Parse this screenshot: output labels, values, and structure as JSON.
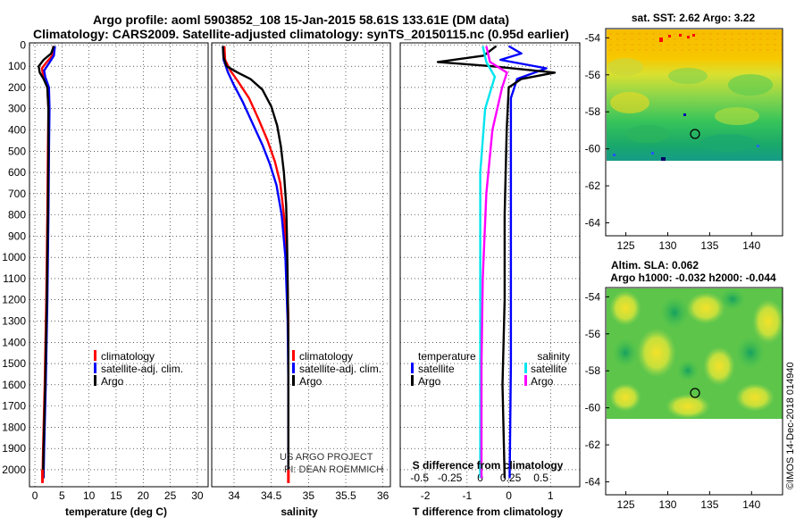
{
  "header": {
    "title_line1": "Argo profile: aoml 5903852_108 15-Jan-2015 58.61S 133.61E (DM data)",
    "title_line2": "Climatology: CARS2009. Satellite-adjusted climatology: synTS_20150115.nc (0.95d earlier)"
  },
  "colors": {
    "climatology": "#ff0000",
    "satellite": "#0000ff",
    "argo": "#000000",
    "sal_satellite": "#00e5ee",
    "sal_argo": "#ff00ff"
  },
  "credits": {
    "project": "US ARGO PROJECT",
    "pi": "PI: DEAN ROEMMICH",
    "imos": "©IMOS 14-Dec-2018 014940"
  },
  "chart_data": [
    {
      "type": "line",
      "title": "temperature profile",
      "xlabel": "temperature (deg C)",
      "ylabel": "pressure",
      "xlim": [
        -1,
        32
      ],
      "ylim": [
        2080,
        -10
      ],
      "xticks": [
        0,
        5,
        10,
        15,
        20,
        25,
        30
      ],
      "yticks": [
        0,
        100,
        200,
        300,
        400,
        500,
        600,
        700,
        800,
        900,
        1000,
        1100,
        1200,
        1300,
        1400,
        1500,
        1600,
        1700,
        1800,
        1900,
        2000
      ],
      "legend": [
        "climatology",
        "satellite-adj. clim.",
        "Argo"
      ],
      "series": [
        {
          "name": "climatology",
          "points": [
            [
              3.4,
              5
            ],
            [
              3.2,
              50
            ],
            [
              2.2,
              80
            ],
            [
              1.3,
              110
            ],
            [
              1.5,
              140
            ],
            [
              2.3,
              200
            ],
            [
              2.5,
              300
            ],
            [
              2.4,
              500
            ],
            [
              2.3,
              800
            ],
            [
              2.1,
              1200
            ],
            [
              1.8,
              1600
            ],
            [
              1.5,
              1900
            ],
            [
              1.4,
              2050
            ]
          ]
        },
        {
          "name": "satellite-adj. clim.",
          "points": [
            [
              3.7,
              5
            ],
            [
              3.5,
              50
            ],
            [
              2.5,
              90
            ],
            [
              1.7,
              120
            ],
            [
              1.9,
              150
            ],
            [
              2.6,
              200
            ],
            [
              2.7,
              300
            ],
            [
              2.6,
              500
            ],
            [
              2.5,
              800
            ],
            [
              2.3,
              1200
            ],
            [
              2.0,
              1600
            ],
            [
              1.7,
              1900
            ],
            [
              1.6,
              2040
            ]
          ]
        },
        {
          "name": "Argo",
          "points": [
            [
              3.5,
              5
            ],
            [
              3.0,
              40
            ],
            [
              1.6,
              70
            ],
            [
              0.7,
              100
            ],
            [
              0.9,
              130
            ],
            [
              1.6,
              160
            ],
            [
              2.3,
              200
            ],
            [
              2.5,
              300
            ],
            [
              2.5,
              500
            ],
            [
              2.4,
              800
            ],
            [
              2.2,
              1200
            ],
            [
              1.9,
              1600
            ],
            [
              1.6,
              1900
            ],
            [
              1.5,
              2040
            ]
          ]
        }
      ]
    },
    {
      "type": "line",
      "title": "salinity profile",
      "xlabel": "salinity",
      "xlim": [
        33.7,
        36.1
      ],
      "xticks": [
        34,
        34.5,
        35,
        35.5,
        36
      ],
      "legend": [
        "climatology",
        "satellite-adj. clim.",
        "Argo"
      ],
      "series": [
        {
          "name": "climatology",
          "points": [
            [
              33.87,
              5
            ],
            [
              33.88,
              70
            ],
            [
              33.95,
              120
            ],
            [
              34.05,
              170
            ],
            [
              34.2,
              250
            ],
            [
              34.33,
              350
            ],
            [
              34.45,
              450
            ],
            [
              34.55,
              550
            ],
            [
              34.62,
              650
            ],
            [
              34.67,
              800
            ],
            [
              34.71,
              1000
            ],
            [
              34.73,
              1300
            ],
            [
              34.73,
              1600
            ],
            [
              34.73,
              2050
            ]
          ]
        },
        {
          "name": "satellite-adj. clim.",
          "points": [
            [
              33.85,
              5
            ],
            [
              33.86,
              70
            ],
            [
              33.92,
              130
            ],
            [
              34.0,
              190
            ],
            [
              34.12,
              270
            ],
            [
              34.25,
              370
            ],
            [
              34.38,
              470
            ],
            [
              34.48,
              560
            ],
            [
              34.57,
              660
            ],
            [
              34.64,
              800
            ],
            [
              34.69,
              1000
            ],
            [
              34.72,
              1300
            ],
            [
              34.73,
              1600
            ],
            [
              34.73,
              2040
            ]
          ]
        },
        {
          "name": "Argo",
          "points": [
            [
              33.85,
              5
            ],
            [
              33.86,
              60
            ],
            [
              33.9,
              100
            ],
            [
              34.05,
              130
            ],
            [
              34.22,
              160
            ],
            [
              34.38,
              210
            ],
            [
              34.5,
              290
            ],
            [
              34.58,
              380
            ],
            [
              34.63,
              480
            ],
            [
              34.67,
              600
            ],
            [
              34.7,
              750
            ],
            [
              34.71,
              900
            ],
            [
              34.72,
              1100
            ],
            [
              34.73,
              1400
            ],
            [
              34.73,
              1700
            ],
            [
              34.73,
              2040
            ]
          ]
        }
      ]
    },
    {
      "type": "line",
      "title": "difference from climatology",
      "xlabel": "T difference from climatology",
      "xlabel_top": "S difference from climatology",
      "xlim": [
        -2.6,
        1.7
      ],
      "xticks": [
        -2,
        -1,
        0,
        1
      ],
      "xticks_top": [
        -0.5,
        -0.25,
        0,
        0.25,
        0.5
      ],
      "legend_left_title": "temperature",
      "legend_right_title": "salinity",
      "legend_left": [
        "satellite",
        "Argo"
      ],
      "legend_right": [
        "satellite",
        "Argo"
      ],
      "series": [
        {
          "name": "temperature satellite",
          "points": [
            [
              0,
              5
            ],
            [
              0.3,
              40
            ],
            [
              -0.2,
              70
            ],
            [
              0.9,
              110
            ],
            [
              0.2,
              160
            ],
            [
              0.05,
              250
            ],
            [
              0.05,
              600
            ],
            [
              0.05,
              1000
            ],
            [
              0.05,
              1500
            ],
            [
              0.02,
              2040
            ]
          ]
        },
        {
          "name": "temperature Argo",
          "points": [
            [
              -0.3,
              5
            ],
            [
              -0.6,
              50
            ],
            [
              -1.7,
              80
            ],
            [
              -0.4,
              100
            ],
            [
              1.1,
              130
            ],
            [
              0.3,
              160
            ],
            [
              0.0,
              200
            ],
            [
              -0.05,
              400
            ],
            [
              -0.1,
              800
            ],
            [
              -0.1,
              1200
            ],
            [
              -0.15,
              1600
            ],
            [
              -0.1,
              2040
            ]
          ]
        },
        {
          "name": "salinity satellite",
          "points": [
            [
              0.02,
              5
            ],
            [
              0.05,
              80
            ],
            [
              0.12,
              150
            ],
            [
              0.04,
              300
            ],
            [
              0.0,
              600
            ],
            [
              0.0,
              1000
            ],
            [
              0.0,
              1500
            ],
            [
              0.0,
              2040
            ]
          ]
        },
        {
          "name": "salinity Argo",
          "points": [
            [
              0.05,
              5
            ],
            [
              0.08,
              80
            ],
            [
              0.22,
              130
            ],
            [
              0.18,
              200
            ],
            [
              0.1,
              400
            ],
            [
              0.05,
              700
            ],
            [
              0.02,
              1100
            ],
            [
              0.01,
              1500
            ],
            [
              0.01,
              2040
            ]
          ]
        }
      ]
    },
    {
      "type": "heatmap",
      "title": "sat. SST: 2.62 Argo: 3.22",
      "xticks": [
        125,
        130,
        135,
        140
      ],
      "yticks": [
        -54,
        -56,
        -58,
        -60,
        -62,
        -64
      ],
      "marker": {
        "lon": 133.6,
        "lat": -58.6
      }
    },
    {
      "type": "heatmap",
      "title_line1": "Altim. SLA: 0.062",
      "title_line2": "Argo h1000: -0.032 h2000: -0.044",
      "xticks": [
        125,
        130,
        135,
        140
      ],
      "yticks": [
        -54,
        -56,
        -58,
        -60,
        -62,
        -64
      ],
      "marker": {
        "lon": 133.6,
        "lat": -58.6
      }
    }
  ]
}
